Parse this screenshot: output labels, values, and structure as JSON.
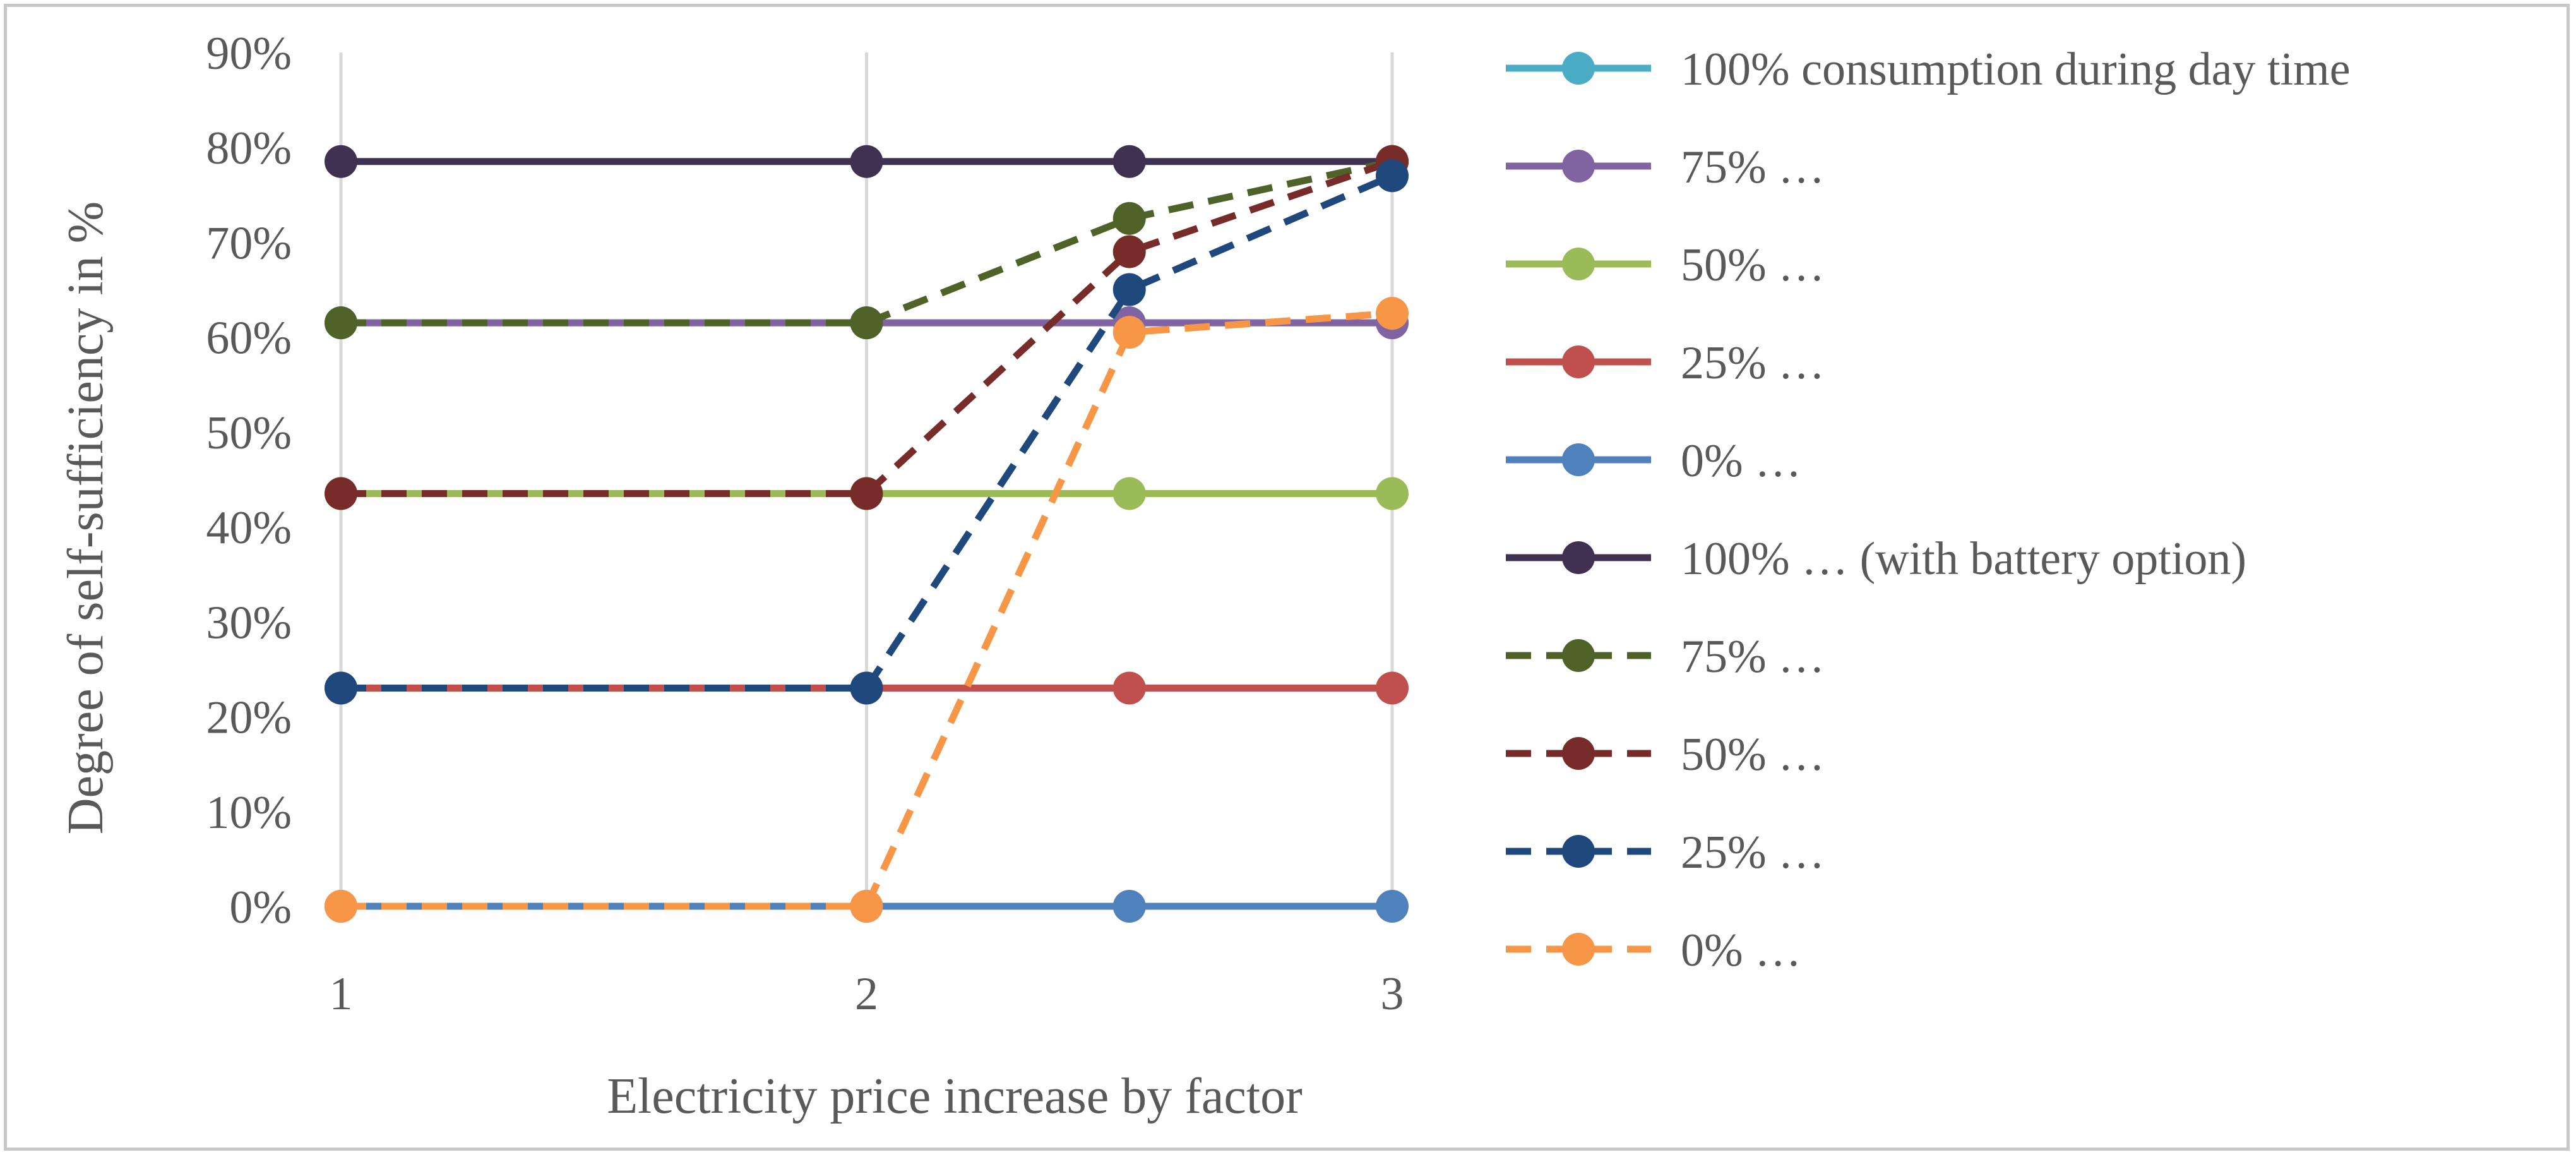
{
  "chart_data": {
    "type": "line",
    "title": "",
    "xlabel": "Electricity price increase by factor",
    "ylabel": "Degree of self-sufficiency in %",
    "x_ticks": [
      "1",
      "2",
      "3"
    ],
    "y_ticks": [
      "0%",
      "10%",
      "20%",
      "30%",
      "40%",
      "50%",
      "60%",
      "70%",
      "80%",
      "90%"
    ],
    "xlim": [
      1,
      3
    ],
    "ylim": [
      0,
      90
    ],
    "grid": "vertical",
    "legend_position": "right",
    "x": [
      1,
      2,
      2.5,
      3
    ],
    "series": [
      {
        "name": "100% consumption during day time",
        "values": [
          61.5,
          61.5,
          61.5,
          61.5
        ],
        "color": "#4bacc6",
        "dash": false
      },
      {
        "name": "75% …",
        "values": [
          61.5,
          61.5,
          61.5,
          61.5
        ],
        "color": "#8064a2",
        "dash": false
      },
      {
        "name": "50% …",
        "values": [
          43.5,
          43.5,
          43.5,
          43.5
        ],
        "color": "#9bbb59",
        "dash": false
      },
      {
        "name": "25% …",
        "values": [
          23,
          23,
          23,
          23
        ],
        "color": "#c0504d",
        "dash": false
      },
      {
        "name": "0% …",
        "values": [
          0,
          0,
          0,
          0
        ],
        "color": "#4f81bd",
        "dash": false
      },
      {
        "name": "100% … (with battery option)",
        "values": [
          78.5,
          78.5,
          78.5,
          78.5
        ],
        "color": "#403152",
        "dash": false
      },
      {
        "name": "75% …",
        "values": [
          61.5,
          61.5,
          72.5,
          78.5
        ],
        "color": "#4f6228",
        "dash": true
      },
      {
        "name": "50% …",
        "values": [
          43.5,
          43.5,
          69,
          78.5
        ],
        "color": "#772c2a",
        "dash": true
      },
      {
        "name": "25% …",
        "values": [
          23,
          23,
          65,
          77
        ],
        "color": "#1f497d",
        "dash": true
      },
      {
        "name": "0% …",
        "values": [
          0,
          0,
          60.5,
          62.5
        ],
        "color": "#f79646",
        "dash": true
      }
    ]
  }
}
